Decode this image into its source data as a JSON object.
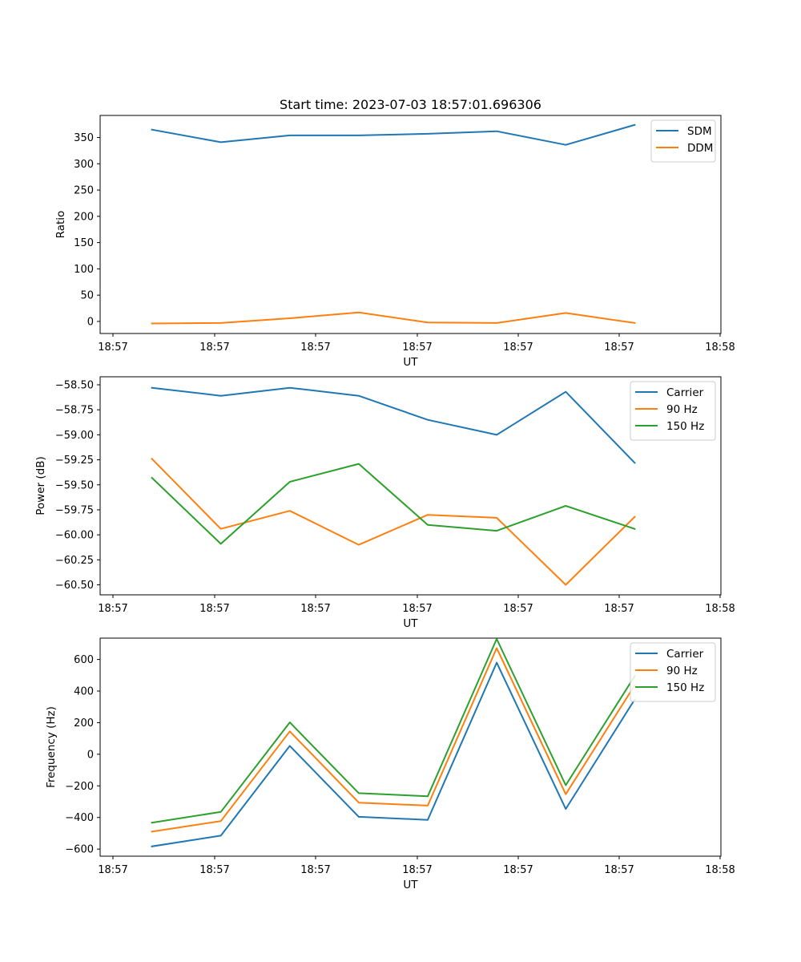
{
  "figure": {
    "background": "#ffffff"
  },
  "chart_data": [
    {
      "type": "line",
      "title": "Start time: 2023-07-03 18:57:01.696306",
      "xlabel": "UT",
      "ylabel": "Ratio",
      "x_tick_labels": [
        "18:57",
        "18:57",
        "18:57",
        "18:57",
        "18:57",
        "18:57",
        "18:58"
      ],
      "x": [
        1,
        2,
        3,
        4,
        5,
        6,
        7,
        8
      ],
      "xlim": [
        0.25,
        9.25
      ],
      "ylim": [
        -23,
        392
      ],
      "yticks": [
        0,
        50,
        100,
        150,
        200,
        250,
        300,
        350
      ],
      "y_tick_labels": [
        "0",
        "50",
        "100",
        "150",
        "200",
        "250",
        "300",
        "350"
      ],
      "legend": "top-right",
      "series": [
        {
          "name": "SDM",
          "color": "#1f77b4",
          "values": [
            365,
            341,
            354,
            354,
            357,
            362,
            336,
            374
          ]
        },
        {
          "name": "DDM",
          "color": "#ff7f0e",
          "values": [
            -4,
            -3,
            6,
            17,
            -2,
            -3,
            16,
            -3
          ]
        }
      ]
    },
    {
      "type": "line",
      "title": "",
      "xlabel": "UT",
      "ylabel": "Power (dB)",
      "x_tick_labels": [
        "18:57",
        "18:57",
        "18:57",
        "18:57",
        "18:57",
        "18:57",
        "18:58"
      ],
      "x": [
        1,
        2,
        3,
        4,
        5,
        6,
        7,
        8
      ],
      "xlim": [
        0.25,
        9.25
      ],
      "ylim": [
        -60.6,
        -58.42
      ],
      "yticks": [
        -58.5,
        -58.75,
        -59.0,
        -59.25,
        -59.5,
        -59.75,
        -60.0,
        -60.25,
        -60.5
      ],
      "y_tick_labels": [
        "−58.50",
        "−58.75",
        "−59.00",
        "−59.25",
        "−59.50",
        "−59.75",
        "−60.00",
        "−60.25",
        "−60.50"
      ],
      "legend": "top-right",
      "series": [
        {
          "name": "Carrier",
          "color": "#1f77b4",
          "values": [
            -58.53,
            -58.61,
            -58.53,
            -58.61,
            -58.85,
            -59.0,
            -58.57,
            -59.28
          ]
        },
        {
          "name": "90 Hz",
          "color": "#ff7f0e",
          "values": [
            -59.24,
            -59.94,
            -59.76,
            -60.1,
            -59.8,
            -59.83,
            -60.5,
            -59.82
          ]
        },
        {
          "name": "150 Hz",
          "color": "#2ca02c",
          "values": [
            -59.43,
            -60.09,
            -59.47,
            -59.29,
            -59.9,
            -59.96,
            -59.71,
            -59.94
          ]
        }
      ]
    },
    {
      "type": "line",
      "title": "",
      "xlabel": "UT",
      "ylabel": "Frequency (Hz)",
      "x_tick_labels": [
        "18:57",
        "18:57",
        "18:57",
        "18:57",
        "18:57",
        "18:57",
        "18:58"
      ],
      "x": [
        1,
        2,
        3,
        4,
        5,
        6,
        7,
        8
      ],
      "xlim": [
        0.25,
        9.25
      ],
      "ylim": [
        -645,
        735
      ],
      "yticks": [
        600,
        400,
        200,
        0,
        -200,
        -400,
        -600
      ],
      "y_tick_labels": [
        "600",
        "400",
        "200",
        "0",
        "−200",
        "−400",
        "−600"
      ],
      "legend": "top-right",
      "series": [
        {
          "name": "Carrier",
          "color": "#1f77b4",
          "values": [
            -583,
            -515,
            53,
            -396,
            -415,
            580,
            -346,
            347
          ]
        },
        {
          "name": "90 Hz",
          "color": "#ff7f0e",
          "values": [
            -490,
            -423,
            145,
            -306,
            -325,
            672,
            -253,
            437
          ]
        },
        {
          "name": "150 Hz",
          "color": "#2ca02c",
          "values": [
            -433,
            -365,
            202,
            -246,
            -266,
            730,
            -196,
            495
          ]
        }
      ]
    }
  ]
}
